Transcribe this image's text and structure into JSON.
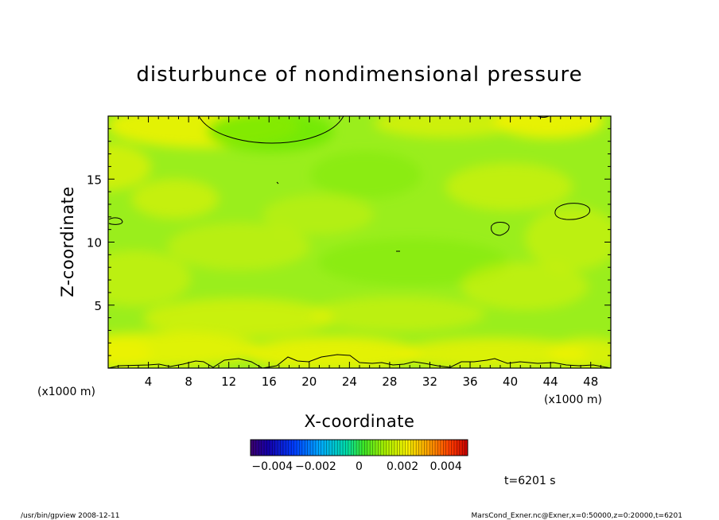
{
  "chart_data": {
    "type": "heatmap",
    "title": "disturbunce of nondimensional pressure",
    "xlabel": "X-coordinate",
    "ylabel": "Z-coordinate",
    "x_unit": "(x1000 m)",
    "y_unit": "(x1000 m)",
    "xlim": [
      0,
      50
    ],
    "ylim": [
      0,
      20
    ],
    "x_ticks": [
      4,
      8,
      12,
      16,
      20,
      24,
      28,
      32,
      36,
      40,
      44,
      48
    ],
    "y_ticks": [
      5,
      10,
      15
    ],
    "colorbar": {
      "range": [
        -0.005,
        0.005
      ],
      "tick_values": [
        -0.004,
        -0.002,
        0,
        0.002,
        0.004
      ],
      "tick_labels": [
        "−0.004",
        "−0.002",
        "0",
        "0.002",
        "0.004"
      ]
    },
    "colors": {
      "field_base": "#9aee1c",
      "field_positive": "#f0f200",
      "field_negative": "#6ce800"
    },
    "time_label": "t=6201 s",
    "footer_left": "/usr/bin/gpview   2008-12-11",
    "footer_right": "MarsCond_Exner.nc@Exner,x=0:50000,z=0:20000,t=6201"
  }
}
